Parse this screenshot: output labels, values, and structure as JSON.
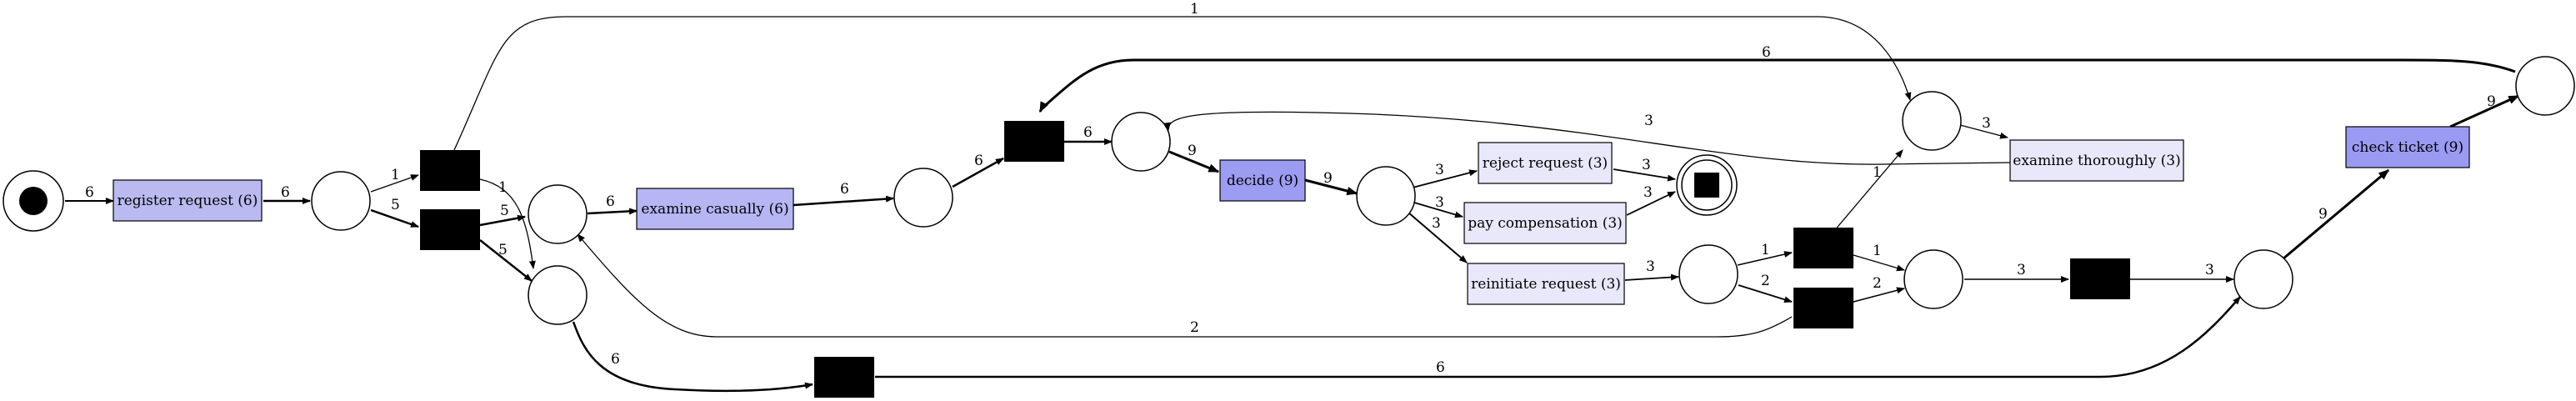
{
  "colors": {
    "register": "#babaf0",
    "casual": "#b6b6f4",
    "decide": "#9c9cf2",
    "light": "#e8e8fa",
    "check": "#9a9af3"
  },
  "transitions": {
    "register_request": "register request (6)",
    "examine_casually": "examine casually (6)",
    "decide": "decide (9)",
    "reject_request": "reject request (3)",
    "pay_compensation": "pay compensation (3)",
    "reinitiate_request": "reinitiate request (3)",
    "examine_thoroughly": "examine thoroughly (3)",
    "check_ticket": "check ticket (9)"
  },
  "arc_labels": {
    "start_to_register": "6",
    "register_to_p1": "6",
    "p1_to_tau1": "1",
    "p1_to_tau2": "5",
    "tau1_to_exam_place": "1",
    "tau1_to_p_exam_thor": "1",
    "tau2_to_p2": "5",
    "tau2_to_p3": "5",
    "p2_to_examine": "6",
    "examine_to_p4": "6",
    "p4_to_tau4": "6",
    "tau4_to_p5": "6",
    "p5_to_decide": "9",
    "decide_to_p6": "9",
    "p6_to_reject": "3",
    "p6_to_pay": "3",
    "p6_to_reinit": "3",
    "reject_to_end": "3",
    "pay_to_end": "3",
    "reinit_to_p7": "3",
    "p7_to_tau5": "1",
    "p7_to_tau6": "2",
    "tau5_to_p_exam_thor": "1",
    "tau5_to_p8": "1",
    "tau6_to_p8": "2",
    "tau6_to_p2": "2",
    "p8_to_tau7": "3",
    "tau7_to_p9": "3",
    "p3_to_tau3": "6",
    "tau3_to_p9": "6",
    "p_exam_thor_to_examine": "3",
    "examine_thor_to_p5": "3",
    "p9_to_check": "9",
    "check_to_p10": "9",
    "p10_to_tau4": "6"
  }
}
